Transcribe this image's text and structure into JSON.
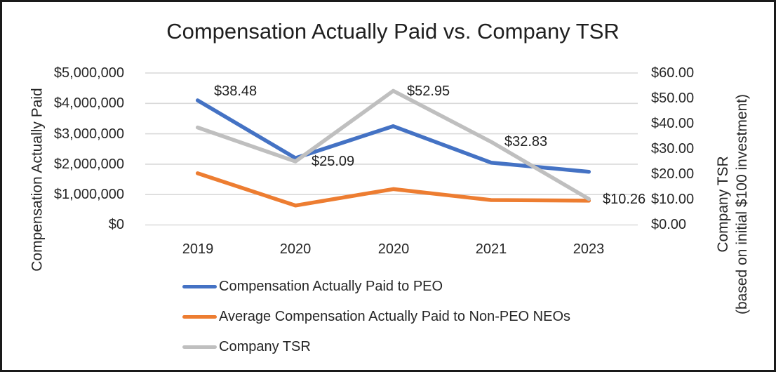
{
  "window": {
    "background_color": "#FFFFFF",
    "border_color": "#1A1A1A"
  },
  "chart_data": {
    "type": "line",
    "title": "Compensation Actually Paid vs. Company TSR",
    "categories": [
      "2019",
      "2020",
      "2020",
      "2021",
      "2023"
    ],
    "left_axis": {
      "title": "Compensation Actually Paid",
      "min": 0,
      "max": 5000000,
      "tick_interval": 1000000,
      "tick_labels_top_to_bottom": [
        "$5,000,000",
        "$4,000,000",
        "$3,000,000",
        "$2,000,000",
        "$1,000,000",
        "$0"
      ]
    },
    "right_axis": {
      "title_line1": "Company TSR",
      "title_line2": "(based on initial $100 investment)",
      "min": 0,
      "max": 60,
      "tick_interval": 10,
      "tick_labels_top_to_bottom": [
        "$60.00",
        "$50.00",
        "$40.00",
        "$30.00",
        "$20.00",
        "$10.00",
        "$0.00"
      ]
    },
    "gridlines": "horizontal",
    "gridline_color": "#D9D9D9",
    "legend_position": "bottom-left",
    "series": [
      {
        "name": "Compensation Actually Paid to PEO",
        "axis": "left",
        "color": "#4472C4",
        "values": [
          4100000,
          2200000,
          3250000,
          2050000,
          1750000
        ]
      },
      {
        "name": "Average Compensation Actually Paid to Non-PEO NEOs",
        "axis": "left",
        "color": "#ED7D31",
        "values": [
          1700000,
          640000,
          1180000,
          820000,
          800000
        ]
      },
      {
        "name": "Company TSR",
        "axis": "right",
        "color": "#BFBFBF",
        "values": [
          38.48,
          25.09,
          52.95,
          32.83,
          10.26
        ],
        "data_labels": [
          "$38.48",
          "$25.09",
          "$52.95",
          "$32.83",
          "$10.26"
        ]
      }
    ]
  }
}
